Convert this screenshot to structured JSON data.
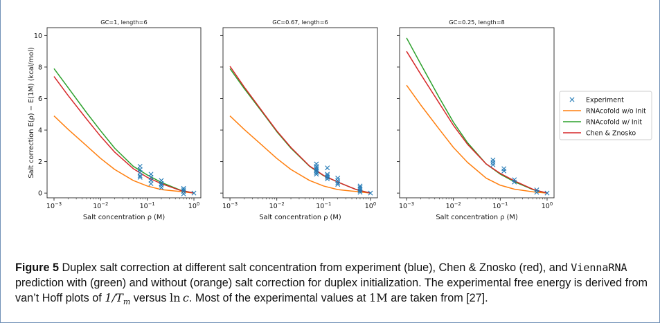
{
  "figure": {
    "caption_label": "Figure 5",
    "caption_part1": " Duplex salt correction at different salt concentration from experiment (blue), Chen & Znosko (red), and ",
    "caption_code": "ViennaRNA",
    "caption_part2": " prediction with (green) and without (orange) salt correction for duplex initialization. The experimental free energy is derived from van’t Hoff plots of ",
    "caption_math1": "1/T",
    "caption_math1_sub": "m",
    "caption_part3": " versus ",
    "caption_math2_fn": "ln",
    "caption_math2_var": "c",
    "caption_part4": ". Most of the experimental values at ",
    "caption_math3": "1M",
    "caption_part5": " are taken from [27]."
  },
  "chart_data": {
    "type": "line",
    "x_scale": "log",
    "xlim": [
      0.001,
      1.0
    ],
    "ylim": [
      -0.3,
      10.5
    ],
    "xlabel": "Salt concentration ρ (M)",
    "ylabel": "Salt correction E(ρ) − E(1M) (kcal/mol)",
    "x_ticks": [
      0.001,
      0.01,
      0.1,
      1
    ],
    "x_tick_labels": [
      {
        "base": "10",
        "exp": "−3"
      },
      {
        "base": "10",
        "exp": "−2"
      },
      {
        "base": "10",
        "exp": "−1"
      },
      {
        "base": "10",
        "exp": "0"
      }
    ],
    "y_ticks": [
      0,
      2,
      4,
      6,
      8,
      10
    ],
    "y_tick_labels": [
      "0",
      "2",
      "4",
      "6",
      "8",
      "10"
    ],
    "legend": {
      "placement": "right",
      "entries": [
        {
          "label": "Experiment",
          "kind": "marker",
          "color": "#1f77b4"
        },
        {
          "label": "RNAcofold w/o Init",
          "kind": "line",
          "color": "#ff7f0e"
        },
        {
          "label": "RNAcofold w/ Init",
          "kind": "line",
          "color": "#2ca02c"
        },
        {
          "label": "Chen & Znosko",
          "kind": "line",
          "color": "#d62728"
        }
      ]
    },
    "colors": {
      "experiment": "#1f77b4",
      "without_init": "#ff7f0e",
      "with_init": "#2ca02c",
      "chen_znosko": "#d62728"
    },
    "panels": [
      {
        "title": "GC=1, length=6",
        "x": [
          0.001,
          0.002,
          0.005,
          0.01,
          0.02,
          0.05,
          0.1,
          0.2,
          0.5,
          1.0
        ],
        "series": [
          {
            "name": "RNAcofold w/o Init",
            "values": [
              4.9,
              4.05,
              3.0,
              2.2,
              1.5,
              0.8,
              0.45,
              0.22,
              0.1,
              0.0
            ]
          },
          {
            "name": "RNAcofold w/ Init",
            "values": [
              7.9,
              6.7,
              5.1,
              3.95,
              2.85,
              1.7,
              1.15,
              0.68,
              0.2,
              0.0
            ]
          },
          {
            "name": "Chen & Znosko",
            "values": [
              7.4,
              6.2,
              4.7,
              3.6,
              2.6,
              1.55,
              1.0,
              0.6,
              0.18,
              0.0
            ]
          }
        ],
        "experiment": {
          "x": [
            0.07,
            0.07,
            0.07,
            0.07,
            0.07,
            0.12,
            0.12,
            0.12,
            0.12,
            0.2,
            0.2,
            0.2,
            0.2,
            0.6,
            0.6,
            0.6,
            0.6,
            1.0
          ],
          "y": [
            1.7,
            1.5,
            1.3,
            1.1,
            1.0,
            1.2,
            1.0,
            0.8,
            0.6,
            0.8,
            0.6,
            0.5,
            0.35,
            0.3,
            0.2,
            0.1,
            -0.05,
            0.0
          ]
        }
      },
      {
        "title": "GC=0.67, length=6",
        "x": [
          0.001,
          0.002,
          0.005,
          0.01,
          0.02,
          0.05,
          0.1,
          0.2,
          0.5,
          1.0
        ],
        "series": [
          {
            "name": "RNAcofold w/o Init",
            "values": [
              4.9,
              4.05,
              3.0,
              2.2,
              1.5,
              0.8,
              0.45,
              0.22,
              0.1,
              0.0
            ]
          },
          {
            "name": "RNAcofold w/ Init",
            "values": [
              7.9,
              6.65,
              5.1,
              3.9,
              2.85,
              1.7,
              1.1,
              0.7,
              0.22,
              0.0
            ]
          },
          {
            "name": "Chen & Znosko",
            "values": [
              8.05,
              6.75,
              5.15,
              3.95,
              2.9,
              1.72,
              1.12,
              0.7,
              0.22,
              0.0
            ]
          }
        ],
        "experiment": {
          "x": [
            0.07,
            0.07,
            0.07,
            0.07,
            0.07,
            0.07,
            0.07,
            0.12,
            0.12,
            0.12,
            0.12,
            0.12,
            0.2,
            0.2,
            0.2,
            0.2,
            0.6,
            0.6,
            0.6,
            0.6,
            0.6,
            1.0
          ],
          "y": [
            1.85,
            1.7,
            1.6,
            1.5,
            1.4,
            1.3,
            1.2,
            1.6,
            1.2,
            1.1,
            1.0,
            0.9,
            0.95,
            0.8,
            0.65,
            0.55,
            0.45,
            0.35,
            0.25,
            0.15,
            0.05,
            0.0
          ]
        }
      },
      {
        "title": "GC=0.25, length=8",
        "x": [
          0.001,
          0.002,
          0.005,
          0.01,
          0.02,
          0.05,
          0.1,
          0.2,
          0.5,
          1.0
        ],
        "series": [
          {
            "name": "RNAcofold w/o Init",
            "values": [
              6.85,
              5.6,
              4.05,
              2.9,
              1.95,
              0.95,
              0.5,
              0.25,
              0.08,
              0.0
            ]
          },
          {
            "name": "RNAcofold w/ Init",
            "values": [
              9.85,
              8.2,
              6.05,
              4.5,
              3.2,
              1.85,
              1.2,
              0.72,
              0.22,
              0.0
            ]
          },
          {
            "name": "Chen & Znosko",
            "values": [
              9.0,
              7.55,
              5.7,
              4.3,
              3.1,
              1.85,
              1.25,
              0.78,
              0.24,
              0.0
            ]
          }
        ],
        "experiment": {
          "x": [
            0.07,
            0.07,
            0.07,
            0.12,
            0.12,
            0.2,
            0.2,
            0.6,
            0.6,
            1.0
          ],
          "y": [
            2.1,
            1.95,
            1.8,
            1.55,
            1.4,
            0.85,
            0.7,
            0.2,
            0.05,
            0.0
          ]
        }
      }
    ]
  }
}
